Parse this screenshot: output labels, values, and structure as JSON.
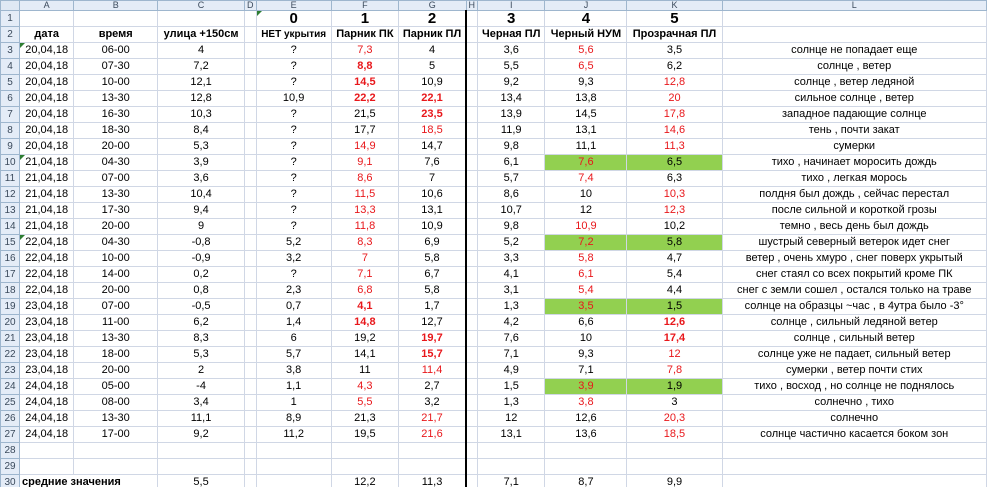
{
  "columns": [
    "",
    "A",
    "B",
    "C",
    "D",
    "E",
    "F",
    "G",
    "H",
    "I",
    "J",
    "K",
    "L"
  ],
  "header_numbers": {
    "e": "0",
    "f": "1",
    "g": "2",
    "i": "3",
    "j": "4",
    "k": "5"
  },
  "header_labels": {
    "a": "дата",
    "b": "время",
    "c": "улица +150см",
    "e": "НЕТ укрытия",
    "f": "Парник ПК",
    "g": "Парник ПЛ",
    "i": "Черная ПЛ",
    "j": "Черный НУМ",
    "k": "Прозрачная ПЛ"
  },
  "rows": [
    {
      "n": "3",
      "a": "20,04,18",
      "b": "06-00",
      "c": "4",
      "e": "?",
      "f": "7,3",
      "g": "4",
      "i": "3,6",
      "j": "5,6",
      "k": "3,5",
      "l": "солнце не попадает еще",
      "fs": "red",
      "gs": "",
      "js": "red",
      "ks": ""
    },
    {
      "n": "4",
      "a": "20,04,18",
      "b": "07-30",
      "c": "7,2",
      "e": "?",
      "f": "8,8",
      "g": "5",
      "i": "5,5",
      "j": "6,5",
      "k": "6,2",
      "l": "солнце , ветер",
      "fs": "red bold",
      "gs": "",
      "js": "red",
      "ks": ""
    },
    {
      "n": "5",
      "a": "20,04,18",
      "b": "10-00",
      "c": "12,1",
      "e": "?",
      "f": "14,5",
      "g": "10,9",
      "i": "9,2",
      "j": "9,3",
      "k": "12,8",
      "l": "солнце , ветер ледяной",
      "fs": "red bold",
      "gs": "",
      "js": "",
      "ks": "red"
    },
    {
      "n": "6",
      "a": "20,04,18",
      "b": "13-30",
      "c": "12,8",
      "e": "10,9",
      "f": "22,2",
      "g": "22,1",
      "i": "13,4",
      "j": "13,8",
      "k": "20",
      "l": "сильное солнце , ветер",
      "fs": "red bold",
      "gs": "red bold",
      "js": "",
      "ks": "red"
    },
    {
      "n": "7",
      "a": "20,04,18",
      "b": "16-30",
      "c": "10,3",
      "e": "?",
      "f": "21,5",
      "g": "23,5",
      "i": "13,9",
      "j": "14,5",
      "k": "17,8",
      "l": "западное падающие солнце",
      "fs": "",
      "gs": "red bold",
      "js": "",
      "ks": "red"
    },
    {
      "n": "8",
      "a": "20,04,18",
      "b": "18-30",
      "c": "8,4",
      "e": "?",
      "f": "17,7",
      "g": "18,5",
      "i": "11,9",
      "j": "13,1",
      "k": "14,6",
      "l": "тень , почти закат",
      "fs": "",
      "gs": "red",
      "js": "",
      "ks": "red"
    },
    {
      "n": "9",
      "a": "20,04,18",
      "b": "20-00",
      "c": "5,3",
      "e": "?",
      "f": "14,9",
      "g": "14,7",
      "i": "9,8",
      "j": "11,1",
      "k": "11,3",
      "l": "сумерки",
      "fs": "red",
      "gs": "",
      "js": "",
      "ks": "red"
    },
    {
      "n": "10",
      "a": "21,04,18",
      "b": "04-30",
      "c": "3,9",
      "e": "?",
      "f": "9,1",
      "g": "7,6",
      "i": "6,1",
      "j": "7,6",
      "k": "6,5",
      "l": "тихо , начинает моросить дождь",
      "fs": "red",
      "gs": "",
      "js": "red green",
      "ks": "green"
    },
    {
      "n": "11",
      "a": "21,04,18",
      "b": "07-00",
      "c": "3,6",
      "e": "?",
      "f": "8,6",
      "g": "7",
      "i": "5,7",
      "j": "7,4",
      "k": "6,3",
      "l": "тихо , легкая морось",
      "fs": "red",
      "gs": "",
      "js": "red",
      "ks": ""
    },
    {
      "n": "12",
      "a": "21,04,18",
      "b": "13-30",
      "c": "10,4",
      "e": "?",
      "f": "11,5",
      "g": "10,6",
      "i": "8,6",
      "j": "10",
      "k": "10,3",
      "l": "полдня был дождь , сейчас перестал",
      "fs": "red",
      "gs": "",
      "js": "",
      "ks": "red"
    },
    {
      "n": "13",
      "a": "21,04,18",
      "b": "17-30",
      "c": "9,4",
      "e": "?",
      "f": "13,3",
      "g": "13,1",
      "i": "10,7",
      "j": "12",
      "k": "12,3",
      "l": "после сильной и короткой грозы",
      "fs": "red",
      "gs": "",
      "js": "",
      "ks": "red"
    },
    {
      "n": "14",
      "a": "21,04,18",
      "b": "20-00",
      "c": "9",
      "e": "?",
      "f": "11,8",
      "g": "10,9",
      "i": "9,8",
      "j": "10,9",
      "k": "10,2",
      "l": "темно , весь день был дождь",
      "fs": "red",
      "gs": "",
      "js": "red",
      "ks": ""
    },
    {
      "n": "15",
      "a": "22,04,18",
      "b": "04-30",
      "c": "-0,8",
      "e": "5,2",
      "f": "8,3",
      "g": "6,9",
      "i": "5,2",
      "j": "7,2",
      "k": "5,8",
      "l": "шустрый северный ветерок идет снег",
      "fs": "red",
      "gs": "",
      "js": "red green",
      "ks": "green"
    },
    {
      "n": "16",
      "a": "22,04,18",
      "b": "10-00",
      "c": "-0,9",
      "e": "3,2",
      "f": "7",
      "g": "5,8",
      "i": "3,3",
      "j": "5,8",
      "k": "4,7",
      "l": "ветер , очень хмуро , снег поверх укрытый",
      "fs": "red",
      "gs": "",
      "js": "red",
      "ks": ""
    },
    {
      "n": "17",
      "a": "22,04,18",
      "b": "14-00",
      "c": "0,2",
      "e": "?",
      "f": "7,1",
      "g": "6,7",
      "i": "4,1",
      "j": "6,1",
      "k": "5,4",
      "l": "снег стаял со всех покрытий кроме ПК",
      "fs": "red",
      "gs": "",
      "js": "red",
      "ks": ""
    },
    {
      "n": "18",
      "a": "22,04,18",
      "b": "20-00",
      "c": "0,8",
      "e": "2,3",
      "f": "6,8",
      "g": "5,8",
      "i": "3,1",
      "j": "5,4",
      "k": "4,4",
      "l": "снег с земли сошел , остался только на траве",
      "fs": "red",
      "gs": "",
      "js": "red",
      "ks": ""
    },
    {
      "n": "19",
      "a": "23,04,18",
      "b": "07-00",
      "c": "-0,5",
      "e": "0,7",
      "f": "4,1",
      "g": "1,7",
      "i": "1,3",
      "j": "3,5",
      "k": "1,5",
      "l": "солнце на образцы ~час , в 4утра было -3°",
      "fs": "red bold",
      "gs": "",
      "js": "red green",
      "ks": "green"
    },
    {
      "n": "20",
      "a": "23,04,18",
      "b": "11-00",
      "c": "6,2",
      "e": "1,4",
      "f": "14,8",
      "g": "12,7",
      "i": "4,2",
      "j": "6,6",
      "k": "12,6",
      "l": "солнце , сильный ледяной ветер",
      "fs": "red bold",
      "gs": "",
      "js": "",
      "ks": "red bold"
    },
    {
      "n": "21",
      "a": "23,04,18",
      "b": "13-30",
      "c": "8,3",
      "e": "6",
      "f": "19,2",
      "g": "19,7",
      "i": "7,6",
      "j": "10",
      "k": "17,4",
      "l": "солнце , сильный  ветер",
      "fs": "",
      "gs": "red bold",
      "js": "",
      "ks": "red bold"
    },
    {
      "n": "22",
      "a": "23,04,18",
      "b": "18-00",
      "c": "5,3",
      "e": "5,7",
      "f": "14,1",
      "g": "15,7",
      "i": "7,1",
      "j": "9,3",
      "k": "12",
      "l": "солнце уже не падает, сильный  ветер",
      "fs": "",
      "gs": "red bold",
      "js": "",
      "ks": "red"
    },
    {
      "n": "23",
      "a": "23,04,18",
      "b": "20-00",
      "c": "2",
      "e": "3,8",
      "f": "11",
      "g": "11,4",
      "i": "4,9",
      "j": "7,1",
      "k": "7,8",
      "l": "сумерки , ветер почти стих",
      "fs": "",
      "gs": "red",
      "js": "",
      "ks": "red"
    },
    {
      "n": "24",
      "a": "24,04,18",
      "b": "05-00",
      "c": "-4",
      "e": "1,1",
      "f": "4,3",
      "g": "2,7",
      "i": "1,5",
      "j": "3,9",
      "k": "1,9",
      "l": "тихо , восход , но солнце не поднялось",
      "fs": "red",
      "gs": "",
      "js": "red green",
      "ks": "green"
    },
    {
      "n": "25",
      "a": "24,04,18",
      "b": "08-00",
      "c": "3,4",
      "e": "1",
      "f": "5,5",
      "g": "3,2",
      "i": "1,3",
      "j": "3,8",
      "k": "3",
      "l": "солнечно , тихо",
      "fs": "red",
      "gs": "",
      "js": "red",
      "ks": ""
    },
    {
      "n": "26",
      "a": "24,04,18",
      "b": "13-30",
      "c": "11,1",
      "e": "8,9",
      "f": "21,3",
      "g": "21,7",
      "i": "12",
      "j": "12,6",
      "k": "20,3",
      "l": "солнечно",
      "fs": "",
      "gs": "red",
      "js": "",
      "ks": "red"
    },
    {
      "n": "27",
      "a": "24,04,18",
      "b": "17-00",
      "c": "9,2",
      "e": "11,2",
      "f": "19,5",
      "g": "21,6",
      "i": "13,1",
      "j": "13,6",
      "k": "18,5",
      "l": "солнце частично касается боком зон",
      "fs": "",
      "gs": "red",
      "js": "",
      "ks": "red"
    }
  ],
  "empty_rows": [
    "28",
    "29"
  ],
  "average_row": {
    "n": "30",
    "a": "средние значения",
    "c": "5,5",
    "f": "12,2",
    "g": "11,3",
    "i": "7,1",
    "j": "8,7",
    "k": "9,9"
  }
}
